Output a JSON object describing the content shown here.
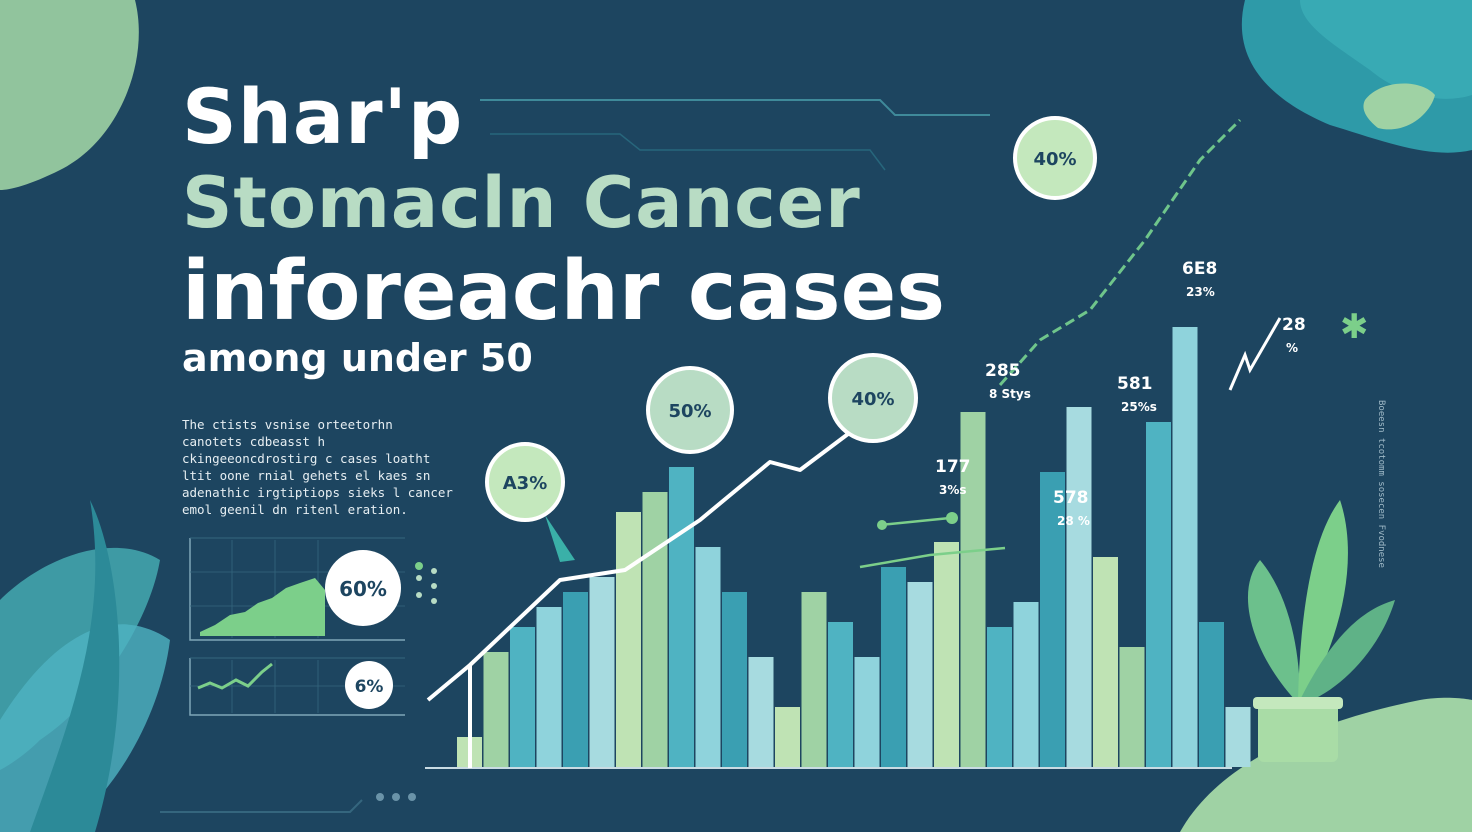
{
  "title": {
    "line1": "Shar'p",
    "line2": "Stomacln Cancer",
    "line3": "inforeachr cases",
    "line4": "among under 50"
  },
  "description": "The ctists vsnise orteetorhn canotets cdbeasst h ckingeeoncdrostirg c cases loatht ltit oone rnial gehets el kaes sn adenathic irgtiptiops sieks l cancer emol geenil dn ritenl eration.",
  "side_text": "Boeesn tcotomm sosecen Fvodnese",
  "colors": {
    "background": "#1d4560",
    "teal": "#4fb3c2",
    "mint": "#9fd2a4",
    "light_green": "#bfe3b4",
    "accent_green": "#7ccf8a"
  },
  "mini_charts": [
    {
      "badge": "60%"
    },
    {
      "badge": "6%"
    }
  ],
  "chart_data": {
    "type": "bar",
    "title": "",
    "xlabel": "",
    "ylabel": "",
    "ylim": [
      0,
      100
    ],
    "grid": false,
    "legend": "none",
    "series": [
      {
        "name": "",
        "values": [
          6,
          23,
          28,
          32,
          35,
          38,
          51,
          55,
          60,
          44,
          35,
          22,
          12,
          35,
          29,
          22,
          40,
          37,
          45,
          71,
          28,
          33,
          59,
          72,
          42,
          24,
          69,
          88,
          29,
          12
        ]
      }
    ],
    "trend_bubbles": [
      {
        "label": "A3%"
      },
      {
        "label": "50%"
      },
      {
        "label": "40%"
      },
      {
        "label": "40%"
      }
    ],
    "bar_annotations": [
      {
        "value": "177",
        "sub": "3%s"
      },
      {
        "value": "285",
        "sub": "8 Stys"
      },
      {
        "value": "578",
        "sub": "28 %"
      },
      {
        "value": "581",
        "sub": "25%s"
      },
      {
        "value": "6E8",
        "sub": "23%"
      },
      {
        "value": "28",
        "sub": "%"
      }
    ]
  }
}
